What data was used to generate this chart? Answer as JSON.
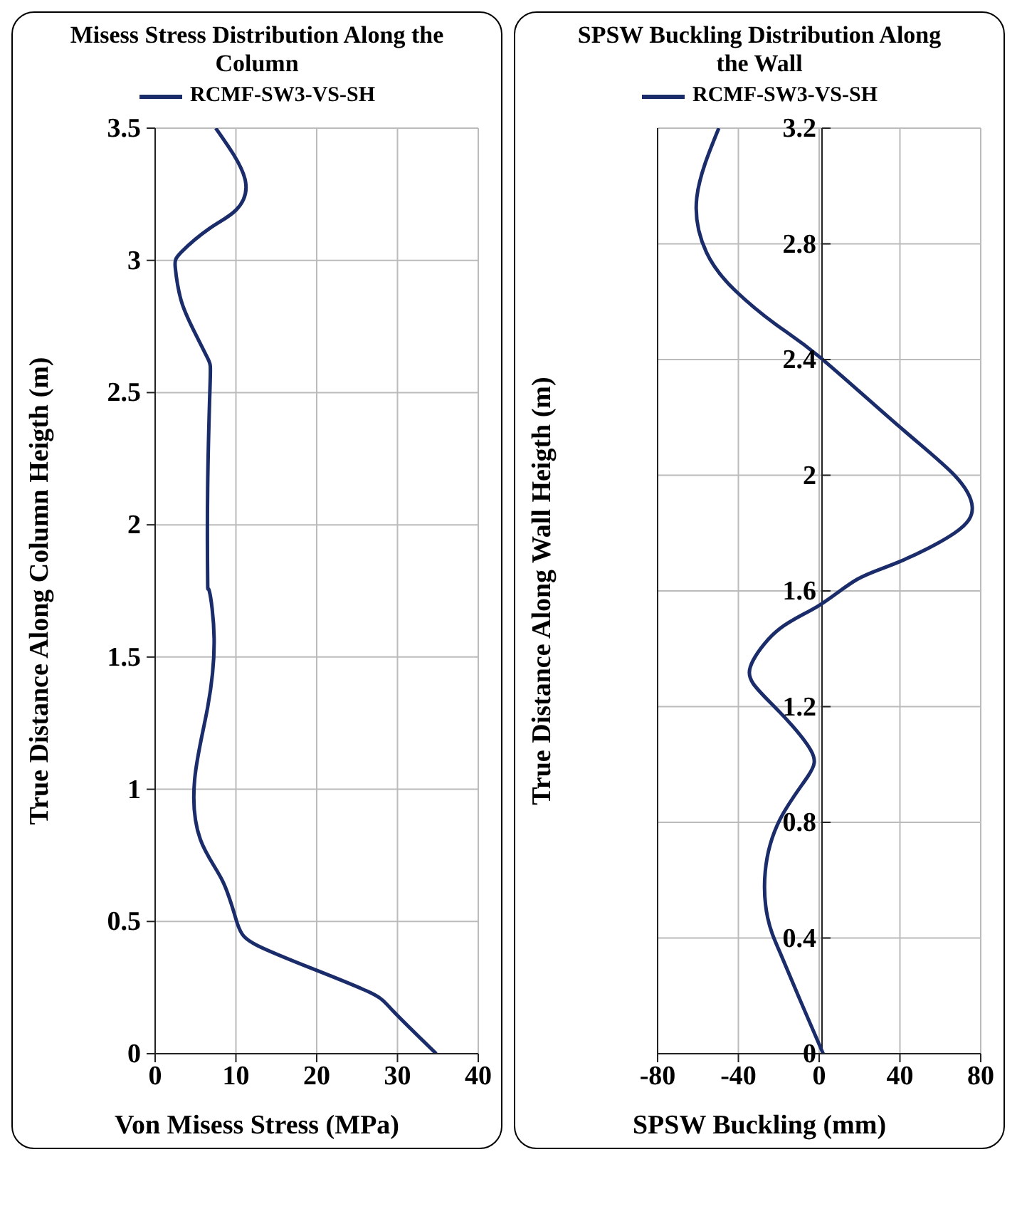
{
  "chart_data": [
    {
      "type": "line",
      "title": "Misess Stress Distribution Along the Column",
      "xlabel": "Von Misess Stress (MPa)",
      "ylabel": "True Distance Along Column Heigth (m)",
      "series": [
        {
          "name": "RCMF-SW3-VS-SH",
          "color": "#1b2c6b",
          "x": [
            34.8,
            29.5,
            26.7,
            19.6,
            12.6,
            10.2,
            8.4,
            5.6,
            4.9,
            6.5,
            7.3,
            6.7,
            6.5,
            6.5,
            6.8,
            6.5,
            4.7,
            3.2,
            2.5,
            3.2,
            6.7,
            10,
            11.1,
            7.5
          ],
          "values": [
            0,
            0.16,
            0.23,
            0.32,
            0.41,
            0.49,
            0.65,
            0.81,
            1.04,
            1.31,
            1.57,
            1.75,
            1.79,
            2.14,
            2.53,
            2.63,
            2.74,
            2.85,
            2.97,
            3.03,
            3.12,
            3.19,
            3.31,
            3.5
          ]
        }
      ],
      "xlim": [
        0,
        40
      ],
      "xticks": [
        0,
        10,
        20,
        30,
        40
      ],
      "ylim": [
        0,
        3.5
      ],
      "yticks": [
        0,
        0.5,
        1,
        1.5,
        2,
        2.5,
        3,
        3.5
      ],
      "grid": true,
      "legend": "top",
      "marker": "none",
      "line_style": "solid"
    },
    {
      "type": "line",
      "title": "SPSW Buckling Distribution Along the Wall",
      "xlabel": "SPSW Buckling (mm)",
      "ylabel": "True Distance Along Wall Heigth (m)",
      "series": [
        {
          "name": "RCMF-SW3-VS-SH",
          "color": "#1b2c6b",
          "x": [
            2,
            -9.1,
            -19.4,
            -25.5,
            -26.7,
            -19.4,
            -5.5,
            -4.2,
            -19.4,
            -32.7,
            -32.7,
            -19.4,
            0,
            18.8,
            39.4,
            67,
            75.8,
            67,
            39.4,
            0,
            -21.2,
            -41.8,
            -55.8,
            -60.6,
            -49.7
          ],
          "values": [
            0,
            0.18,
            0.35,
            0.47,
            0.63,
            0.81,
            0.96,
            1.05,
            1.18,
            1.28,
            1.36,
            1.47,
            1.55,
            1.64,
            1.7,
            1.8,
            1.89,
            2,
            2.17,
            2.41,
            2.52,
            2.64,
            2.77,
            2.96,
            3.2
          ]
        }
      ],
      "xlim": [
        -80,
        80
      ],
      "xticks": [
        -80,
        -40,
        0,
        40,
        80
      ],
      "ylim": [
        0,
        3.2
      ],
      "yticks": [
        0,
        0.4,
        0.8,
        1.2,
        1.6,
        2,
        2.4,
        2.8,
        3.2
      ],
      "grid": true,
      "legend": "top",
      "marker": "none",
      "line_style": "solid"
    }
  ]
}
